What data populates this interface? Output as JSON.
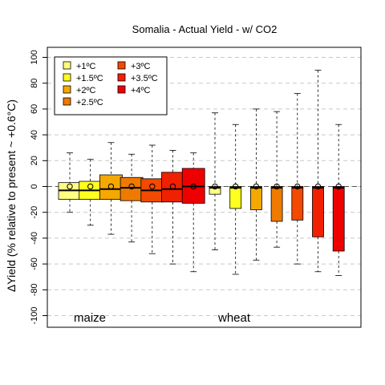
{
  "chart_data": {
    "type": "box",
    "title": "Somalia - Actual Yield - w/ CO2",
    "ylabel": "ΔYield (% relative to present ~ +0.6°C)",
    "ylim": [
      -105,
      105
    ],
    "yticks": [
      -100,
      -80,
      -60,
      -40,
      -20,
      0,
      20,
      40,
      60,
      80,
      100
    ],
    "grid": "horizontal-dashed",
    "legend_position": "top-left",
    "legend": [
      {
        "label": "+1ºC",
        "color": "#ffff80"
      },
      {
        "label": "+1.5ºC",
        "color": "#ffff20"
      },
      {
        "label": "+2ºC",
        "color": "#f5a800"
      },
      {
        "label": "+2.5ºC",
        "color": "#ee7a00"
      },
      {
        "label": "+3ºC",
        "color": "#f24a00"
      },
      {
        "label": "+3.5ºC",
        "color": "#f02000"
      },
      {
        "label": "+4ºC",
        "color": "#ee0000"
      }
    ],
    "groups": [
      {
        "name": "maize",
        "boxes": [
          {
            "level": "+1ºC",
            "min": -20,
            "q1": -10,
            "median": -3,
            "q3": 3,
            "max": 26,
            "mean": 0
          },
          {
            "level": "+1.5ºC",
            "min": -30,
            "q1": -10,
            "median": -3,
            "q3": 4,
            "max": 21,
            "mean": 0
          },
          {
            "level": "+2ºC",
            "min": -37,
            "q1": -10,
            "median": -2,
            "q3": 9,
            "max": 34,
            "mean": 0
          },
          {
            "level": "+2.5ºC",
            "min": -43,
            "q1": -11,
            "median": -1,
            "q3": 7,
            "max": 25,
            "mean": 0
          },
          {
            "level": "+3ºC",
            "min": -52,
            "q1": -12,
            "median": -3,
            "q3": 6,
            "max": 32,
            "mean": 0
          },
          {
            "level": "+3.5ºC",
            "min": -60,
            "q1": -12,
            "median": -2,
            "q3": 11,
            "max": 28,
            "mean": 0
          },
          {
            "level": "+4ºC",
            "min": -66,
            "q1": -13,
            "median": 0,
            "q3": 14,
            "max": 26,
            "mean": 0
          }
        ]
      },
      {
        "name": "wheat",
        "boxes": [
          {
            "level": "+1ºC",
            "min": -49,
            "q1": -6,
            "median": -1,
            "q3": 0,
            "max": 57,
            "mean": 0
          },
          {
            "level": "+1.5ºC",
            "min": -68,
            "q1": -17,
            "median": -1,
            "q3": 0,
            "max": 48,
            "mean": 0
          },
          {
            "level": "+2ºC",
            "min": -57,
            "q1": -18,
            "median": -1,
            "q3": 0,
            "max": 60,
            "mean": 0
          },
          {
            "level": "+2.5ºC",
            "min": -47,
            "q1": -27,
            "median": -1,
            "q3": 0,
            "max": 58,
            "mean": 0
          },
          {
            "level": "+3ºC",
            "min": -60,
            "q1": -26,
            "median": -1,
            "q3": 0,
            "max": 72,
            "mean": 0
          },
          {
            "level": "+3.5ºC",
            "min": -66,
            "q1": -39,
            "median": -1,
            "q3": 0,
            "max": 90,
            "mean": 0
          },
          {
            "level": "+4ºC",
            "min": -69,
            "q1": -50,
            "median": -1,
            "q3": 0,
            "max": 48,
            "mean": 0
          }
        ]
      }
    ]
  }
}
